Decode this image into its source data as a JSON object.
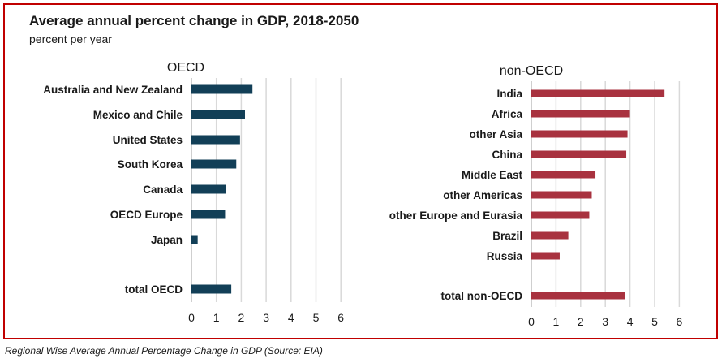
{
  "title": "Average annual percent change in GDP, 2018-2050",
  "subtitle": "percent per year",
  "caption": "Regional Wise Average Annual Percentage Change in GDP (Source: EIA)",
  "colors": {
    "oecd": "#123f57",
    "non_oecd": "#a8323f",
    "grid": "#d9d9d9",
    "border": "#c00000"
  },
  "chart_data": [
    {
      "type": "bar",
      "orientation": "horizontal",
      "title": "OECD",
      "categories": [
        "Australia and New Zealand",
        "Mexico and Chile",
        "United States",
        "South Korea",
        "Canada",
        "OECD Europe",
        "Japan",
        "total OECD"
      ],
      "values": [
        2.45,
        2.15,
        1.95,
        1.8,
        1.4,
        1.35,
        0.25,
        1.6
      ],
      "xlim": [
        0,
        6
      ],
      "xticks": [
        "0",
        "1",
        "2",
        "3",
        "4",
        "5",
        "6"
      ],
      "grid": true
    },
    {
      "type": "bar",
      "orientation": "horizontal",
      "title": "non-OECD",
      "categories": [
        "India",
        "Africa",
        "other Asia",
        "China",
        "Middle East",
        "other Americas",
        "other Europe and Eurasia",
        "Brazil",
        "Russia",
        "total non-OECD"
      ],
      "values": [
        5.4,
        4.0,
        3.9,
        3.85,
        2.6,
        2.45,
        2.35,
        1.5,
        1.15,
        3.8
      ],
      "xlim": [
        0,
        6
      ],
      "xticks": [
        "0",
        "1",
        "2",
        "3",
        "4",
        "5",
        "6"
      ],
      "grid": true
    }
  ]
}
